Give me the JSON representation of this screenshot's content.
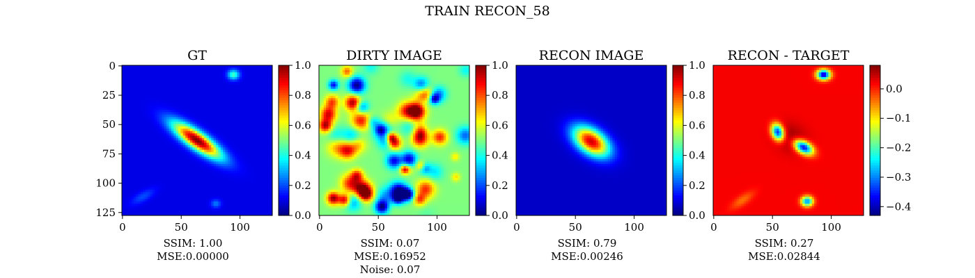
{
  "figure": {
    "title": "TRAIN RECON_58"
  },
  "colors": {
    "colormap": "jet",
    "axis": "#000000",
    "background": "#ffffff"
  },
  "chart_data": [
    {
      "type": "heatmap",
      "title": "GT",
      "xlabel": "",
      "ylabel": "",
      "xlim": [
        0,
        127
      ],
      "ylim": [
        127,
        0
      ],
      "xticks": [
        0,
        50,
        100
      ],
      "yticks": [
        0,
        25,
        50,
        75,
        100,
        125
      ],
      "show_yticks": true,
      "colorbar": {
        "range": [
          0,
          1
        ],
        "ticks": [
          0.0,
          0.2,
          0.4,
          0.6,
          0.8,
          1.0
        ],
        "tick_labels": [
          "0.0",
          "0.2",
          "0.4",
          "0.6",
          "0.8",
          "1.0"
        ]
      },
      "base_level": 0.1,
      "blobs": [
        {
          "x": 64,
          "y": 64,
          "sx": 17,
          "sy": 5,
          "angle": 35,
          "amp": 0.9
        },
        {
          "x": 95,
          "y": 8,
          "sx": 3.5,
          "sy": 3,
          "angle": 0,
          "amp": 0.35
        },
        {
          "x": 80,
          "y": 118,
          "sx": 3,
          "sy": 2.5,
          "angle": 0,
          "amp": 0.15
        },
        {
          "x": 18,
          "y": 112,
          "sx": 8,
          "sy": 3,
          "angle": -30,
          "amp": 0.1
        }
      ],
      "caption": [
        "SSIM: 1.00",
        "MSE:0.00000"
      ]
    },
    {
      "type": "heatmap",
      "title": "DIRTY IMAGE",
      "xlabel": "",
      "ylabel": "",
      "xlim": [
        0,
        127
      ],
      "ylim": [
        127,
        0
      ],
      "xticks": [
        0,
        50,
        100
      ],
      "yticks": [],
      "show_yticks": false,
      "colorbar": {
        "range": [
          0,
          1
        ],
        "ticks": [
          0.0,
          0.2,
          0.4,
          0.6,
          0.8,
          1.0
        ],
        "tick_labels": [
          "0.0",
          "0.2",
          "0.4",
          "0.6",
          "0.8",
          "1.0"
        ]
      },
      "base_level": 0.5,
      "noise": true,
      "blobs": [
        {
          "x": 64,
          "y": 66,
          "sx": 4,
          "sy": 4,
          "angle": 0,
          "amp": 0.45
        }
      ],
      "caption": [
        "SSIM: 0.07",
        "MSE:0.16952",
        "Noise: 0.07"
      ]
    },
    {
      "type": "heatmap",
      "title": "RECON IMAGE",
      "xlabel": "",
      "ylabel": "",
      "xlim": [
        0,
        127
      ],
      "ylim": [
        127,
        0
      ],
      "xticks": [
        0,
        50,
        100
      ],
      "yticks": [],
      "show_yticks": false,
      "colorbar": {
        "range": [
          0,
          1
        ],
        "ticks": [
          0.0,
          0.2,
          0.4,
          0.6,
          0.8,
          1.0
        ],
        "tick_labels": [
          "0.0",
          "0.2",
          "0.4",
          "0.6",
          "0.8",
          "1.0"
        ]
      },
      "base_level": 0.07,
      "blobs": [
        {
          "x": 64,
          "y": 65,
          "sx": 12,
          "sy": 7,
          "angle": 35,
          "amp": 0.85
        }
      ],
      "caption": [
        "SSIM: 0.79",
        "MSE:0.00246"
      ]
    },
    {
      "type": "heatmap",
      "title": "RECON - TARGET",
      "xlabel": "",
      "ylabel": "",
      "xlim": [
        0,
        127
      ],
      "ylim": [
        127,
        0
      ],
      "xticks": [
        0,
        50,
        100
      ],
      "yticks": [],
      "show_yticks": false,
      "colorbar": {
        "range": [
          -0.43,
          0.08
        ],
        "ticks": [
          0.0,
          -0.1,
          -0.2,
          -0.3,
          -0.4
        ],
        "tick_labels": [
          "0.0",
          "−0.1",
          "−0.2",
          "−0.3",
          "−0.4"
        ]
      },
      "base_level": 0.02,
      "blobs": [
        {
          "x": 94,
          "y": 8,
          "sx": 4,
          "sy": 3,
          "angle": 0,
          "amp": -0.42
        },
        {
          "x": 55,
          "y": 57,
          "sx": 3.5,
          "sy": 5,
          "angle": -20,
          "amp": -0.38
        },
        {
          "x": 77,
          "y": 70,
          "sx": 6,
          "sy": 3.5,
          "angle": 30,
          "amp": -0.4
        },
        {
          "x": 80,
          "y": 116,
          "sx": 3.5,
          "sy": 3,
          "angle": 0,
          "amp": -0.32
        },
        {
          "x": 66,
          "y": 62,
          "sx": 10,
          "sy": 8,
          "angle": 30,
          "amp": 0.05
        },
        {
          "x": 25,
          "y": 115,
          "sx": 8,
          "sy": 3,
          "angle": -35,
          "amp": -0.06
        }
      ],
      "caption": [
        "SSIM: 0.27",
        "MSE:0.02844"
      ]
    }
  ]
}
